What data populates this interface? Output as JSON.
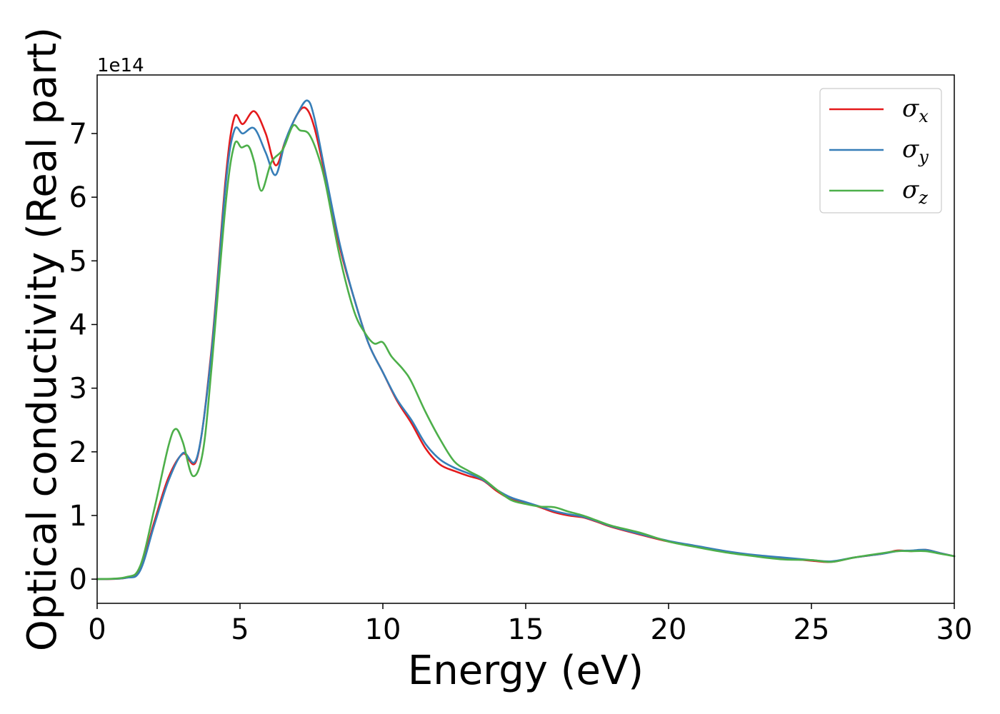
{
  "chart_data": {
    "type": "line",
    "xlabel": "Energy (eV)",
    "ylabel": "Optical conductivity (Real part)",
    "y_offset_label": "1e14",
    "xlim": [
      0,
      30
    ],
    "ylim": [
      -0.38,
      7.92
    ],
    "x_ticks": [
      0,
      5,
      10,
      15,
      20,
      25,
      30
    ],
    "x_tick_labels": [
      "0",
      "5",
      "10",
      "15",
      "20",
      "25",
      "30"
    ],
    "y_ticks": [
      0,
      1,
      2,
      3,
      4,
      5,
      6,
      7
    ],
    "y_tick_labels": [
      "0",
      "1",
      "2",
      "3",
      "4",
      "5",
      "6",
      "7"
    ],
    "grid": false,
    "legend_position": "top-right",
    "series": [
      {
        "name": "σx",
        "symbol": "σ",
        "subscript": "x",
        "color": "#e41a1c",
        "points": [
          [
            0,
            0
          ],
          [
            1,
            0.02
          ],
          [
            1.5,
            0.15
          ],
          [
            2,
            0.9
          ],
          [
            2.5,
            1.6
          ],
          [
            3,
            1.97
          ],
          [
            3.5,
            1.9
          ],
          [
            4,
            3.6
          ],
          [
            4.5,
            6.3
          ],
          [
            4.8,
            7.25
          ],
          [
            5.1,
            7.15
          ],
          [
            5.5,
            7.35
          ],
          [
            5.9,
            7.0
          ],
          [
            6.25,
            6.5
          ],
          [
            6.6,
            6.9
          ],
          [
            7,
            7.3
          ],
          [
            7.3,
            7.4
          ],
          [
            7.6,
            7.1
          ],
          [
            8,
            6.3
          ],
          [
            8.5,
            5.2
          ],
          [
            9,
            4.4
          ],
          [
            9.5,
            3.7
          ],
          [
            10,
            3.25
          ],
          [
            10.5,
            2.8
          ],
          [
            11,
            2.45
          ],
          [
            11.5,
            2.05
          ],
          [
            12,
            1.8
          ],
          [
            12.5,
            1.7
          ],
          [
            13,
            1.62
          ],
          [
            13.5,
            1.55
          ],
          [
            14,
            1.38
          ],
          [
            14.5,
            1.25
          ],
          [
            15,
            1.2
          ],
          [
            15.5,
            1.13
          ],
          [
            16,
            1.05
          ],
          [
            16.5,
            1.0
          ],
          [
            17,
            0.97
          ],
          [
            17.5,
            0.9
          ],
          [
            18,
            0.82
          ],
          [
            19,
            0.7
          ],
          [
            20,
            0.59
          ],
          [
            21,
            0.51
          ],
          [
            22,
            0.43
          ],
          [
            23,
            0.37
          ],
          [
            24,
            0.33
          ],
          [
            25,
            0.29
          ],
          [
            25.7,
            0.27
          ],
          [
            26.5,
            0.34
          ],
          [
            27.5,
            0.4
          ],
          [
            28,
            0.45
          ],
          [
            28.5,
            0.44
          ],
          [
            29,
            0.46
          ],
          [
            29.5,
            0.41
          ],
          [
            30,
            0.36
          ]
        ]
      },
      {
        "name": "σy",
        "symbol": "σ",
        "subscript": "y",
        "color": "#377eb8",
        "points": [
          [
            0,
            0
          ],
          [
            1,
            0.02
          ],
          [
            1.5,
            0.13
          ],
          [
            2,
            0.85
          ],
          [
            2.5,
            1.55
          ],
          [
            3,
            1.98
          ],
          [
            3.5,
            1.92
          ],
          [
            4,
            3.55
          ],
          [
            4.5,
            6.2
          ],
          [
            4.8,
            7.05
          ],
          [
            5.1,
            7.0
          ],
          [
            5.5,
            7.08
          ],
          [
            5.9,
            6.7
          ],
          [
            6.25,
            6.35
          ],
          [
            6.6,
            6.9
          ],
          [
            7,
            7.3
          ],
          [
            7.35,
            7.52
          ],
          [
            7.6,
            7.25
          ],
          [
            8,
            6.35
          ],
          [
            8.5,
            5.25
          ],
          [
            9,
            4.4
          ],
          [
            9.5,
            3.7
          ],
          [
            10,
            3.25
          ],
          [
            10.5,
            2.82
          ],
          [
            11,
            2.5
          ],
          [
            11.5,
            2.12
          ],
          [
            12,
            1.88
          ],
          [
            12.5,
            1.75
          ],
          [
            13,
            1.66
          ],
          [
            13.5,
            1.56
          ],
          [
            14,
            1.4
          ],
          [
            14.5,
            1.28
          ],
          [
            15,
            1.21
          ],
          [
            15.5,
            1.14
          ],
          [
            16,
            1.07
          ],
          [
            16.5,
            1.02
          ],
          [
            17,
            0.98
          ],
          [
            17.5,
            0.91
          ],
          [
            18,
            0.83
          ],
          [
            19,
            0.71
          ],
          [
            20,
            0.6
          ],
          [
            21,
            0.52
          ],
          [
            22,
            0.44
          ],
          [
            23,
            0.38
          ],
          [
            24,
            0.34
          ],
          [
            25,
            0.3
          ],
          [
            25.7,
            0.28
          ],
          [
            26.5,
            0.34
          ],
          [
            27.5,
            0.4
          ],
          [
            28,
            0.44
          ],
          [
            28.5,
            0.45
          ],
          [
            29,
            0.46
          ],
          [
            29.5,
            0.41
          ],
          [
            30,
            0.36
          ]
        ]
      },
      {
        "name": "σz",
        "symbol": "σ",
        "subscript": "z",
        "color": "#4daf4a",
        "points": [
          [
            0,
            0
          ],
          [
            1,
            0.03
          ],
          [
            1.5,
            0.2
          ],
          [
            2,
            1.1
          ],
          [
            2.5,
            2.1
          ],
          [
            2.75,
            2.36
          ],
          [
            3,
            2.15
          ],
          [
            3.35,
            1.62
          ],
          [
            3.7,
            2.0
          ],
          [
            4,
            3.3
          ],
          [
            4.5,
            5.9
          ],
          [
            4.8,
            6.82
          ],
          [
            5.05,
            6.78
          ],
          [
            5.3,
            6.8
          ],
          [
            5.5,
            6.55
          ],
          [
            5.75,
            6.1
          ],
          [
            6.1,
            6.55
          ],
          [
            6.5,
            6.75
          ],
          [
            6.85,
            7.12
          ],
          [
            7.1,
            7.05
          ],
          [
            7.4,
            7.0
          ],
          [
            7.7,
            6.7
          ],
          [
            8,
            6.2
          ],
          [
            8.5,
            5.05
          ],
          [
            9,
            4.2
          ],
          [
            9.4,
            3.85
          ],
          [
            9.7,
            3.7
          ],
          [
            10,
            3.72
          ],
          [
            10.3,
            3.5
          ],
          [
            10.7,
            3.3
          ],
          [
            11,
            3.1
          ],
          [
            11.5,
            2.62
          ],
          [
            12,
            2.2
          ],
          [
            12.5,
            1.85
          ],
          [
            13,
            1.7
          ],
          [
            13.5,
            1.58
          ],
          [
            14,
            1.4
          ],
          [
            14.5,
            1.24
          ],
          [
            15,
            1.18
          ],
          [
            15.5,
            1.14
          ],
          [
            16,
            1.13
          ],
          [
            16.5,
            1.06
          ],
          [
            17,
            1.0
          ],
          [
            17.5,
            0.92
          ],
          [
            18,
            0.84
          ],
          [
            19,
            0.73
          ],
          [
            20,
            0.59
          ],
          [
            21,
            0.5
          ],
          [
            22,
            0.42
          ],
          [
            23,
            0.36
          ],
          [
            24,
            0.31
          ],
          [
            25,
            0.3
          ],
          [
            25.7,
            0.27
          ],
          [
            26.5,
            0.34
          ],
          [
            27.5,
            0.41
          ],
          [
            28,
            0.44
          ],
          [
            28.5,
            0.44
          ],
          [
            29,
            0.44
          ],
          [
            29.5,
            0.4
          ],
          [
            30,
            0.36
          ]
        ]
      }
    ]
  }
}
